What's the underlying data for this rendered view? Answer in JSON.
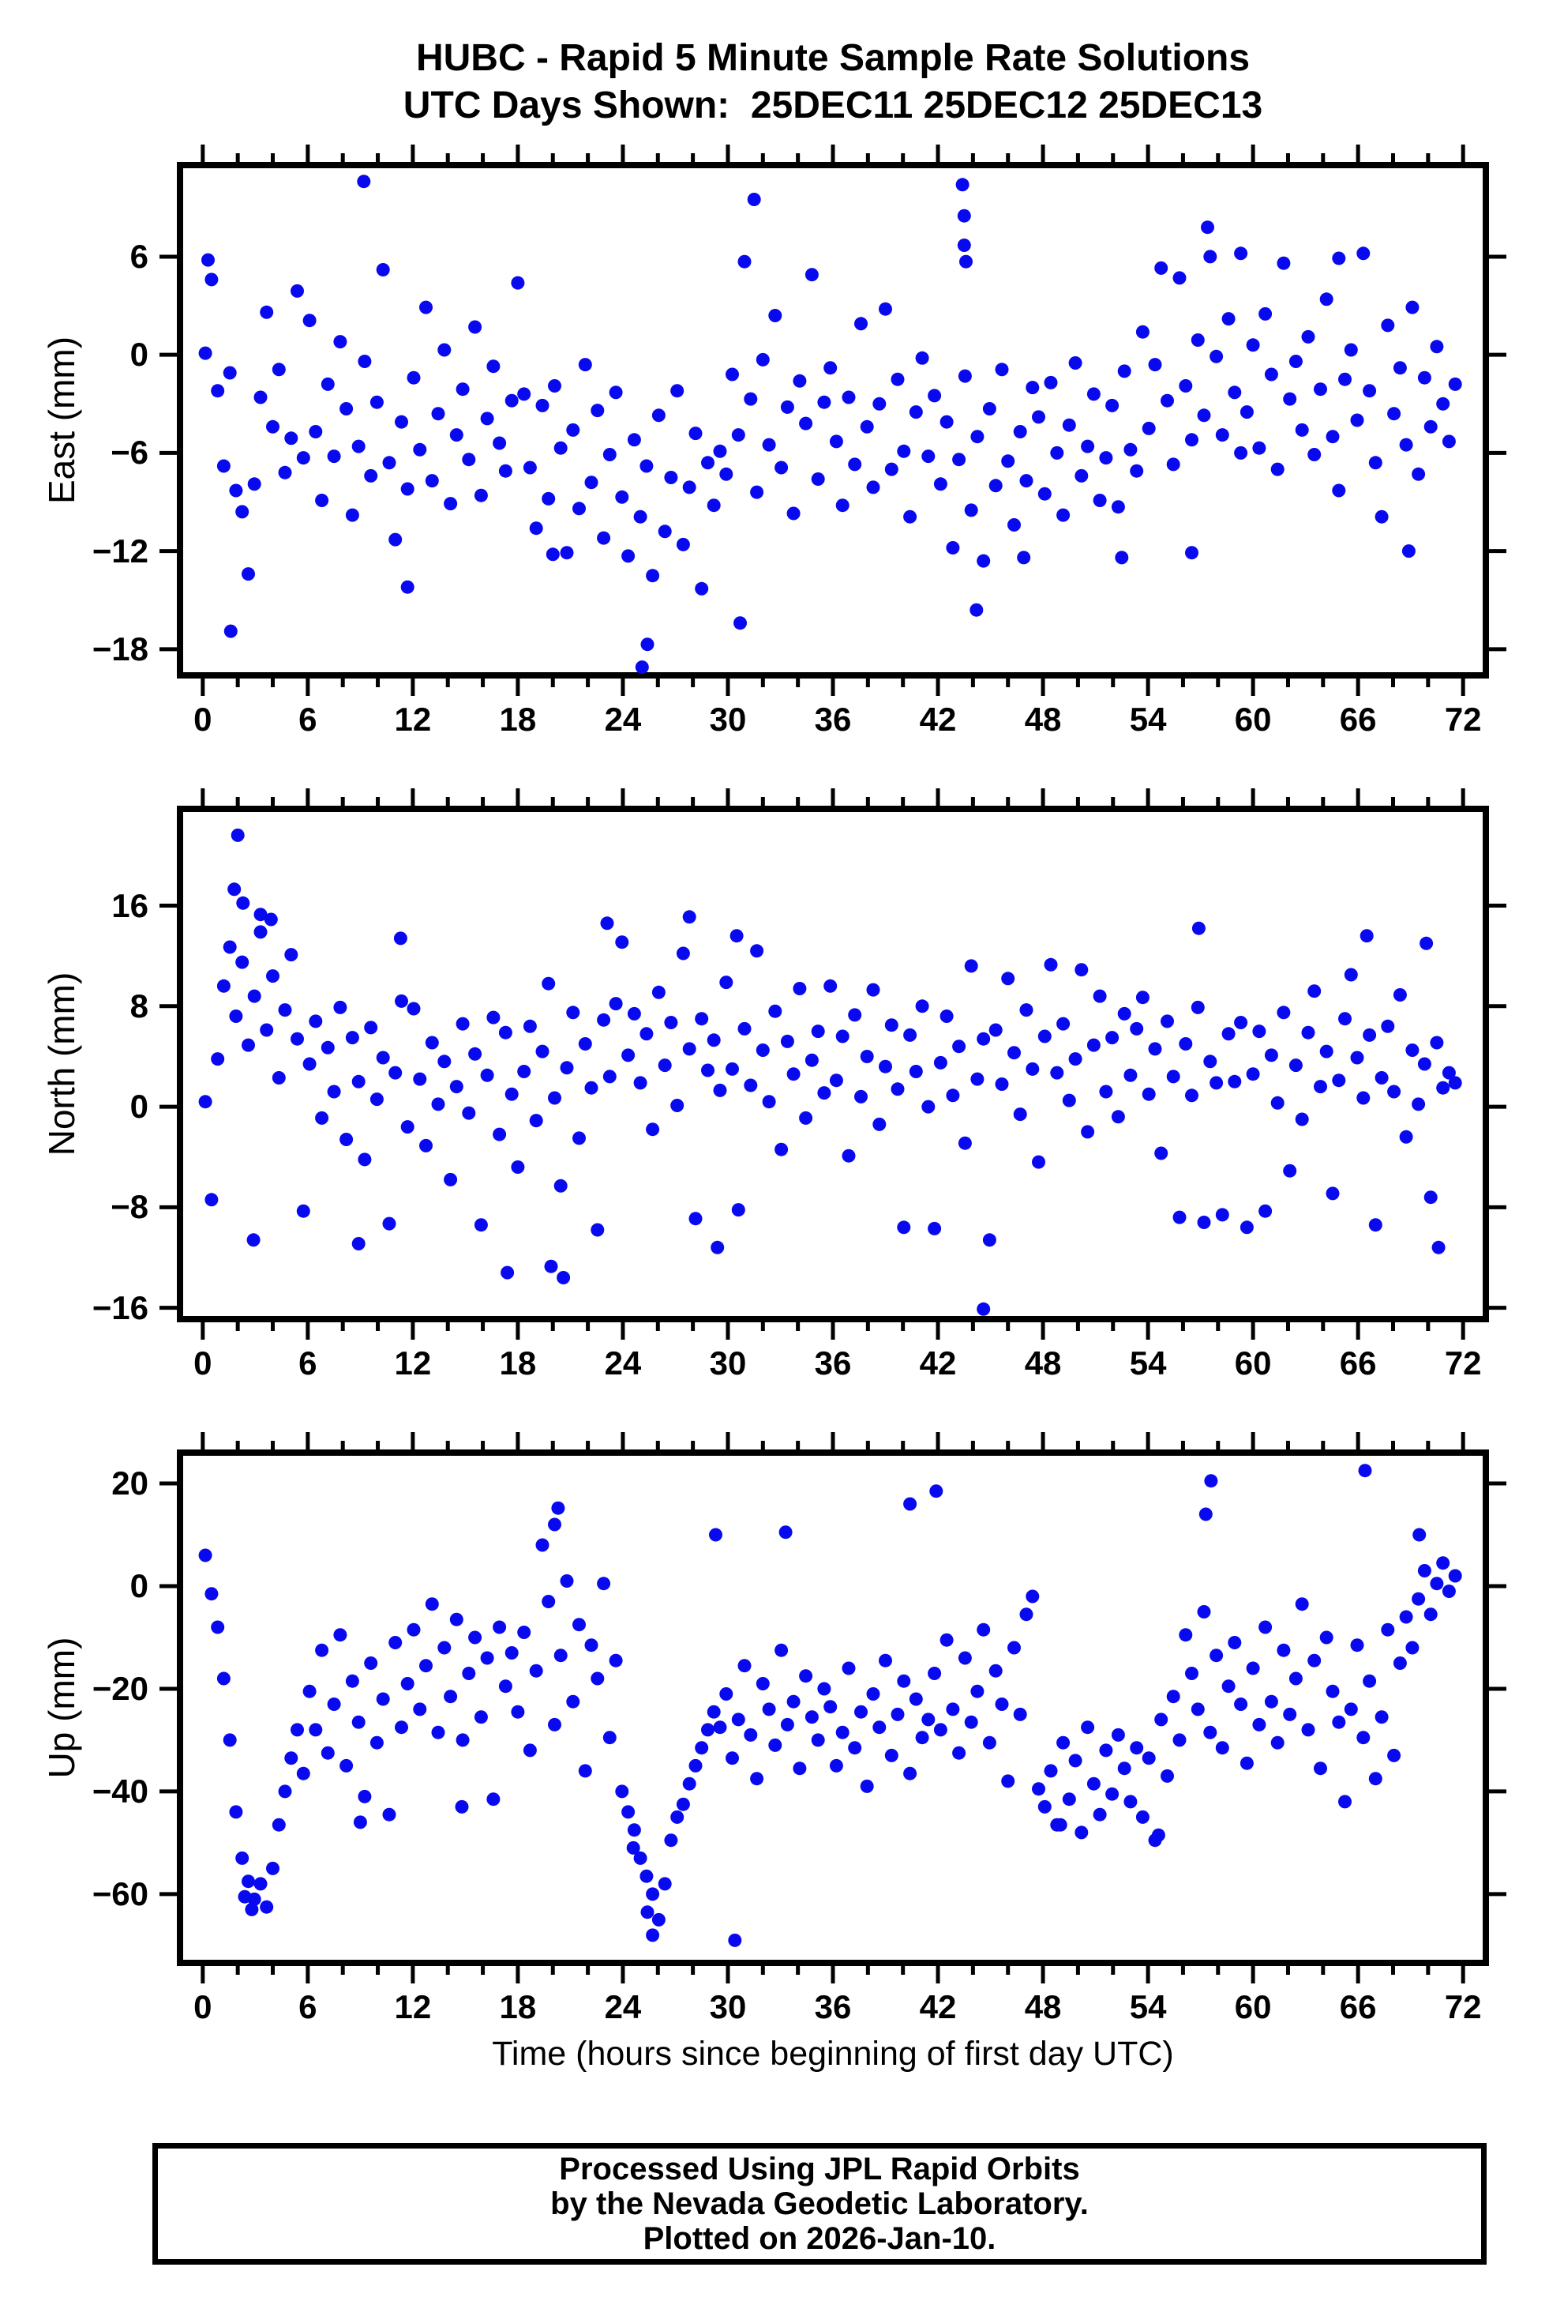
{
  "title": {
    "line1": "HUBC - Rapid 5 Minute Sample Rate Solutions",
    "line2": "UTC Days Shown:  25DEC11 25DEC12 25DEC13"
  },
  "footer": {
    "line1": "Processed Using JPL Rapid Orbits",
    "line2": "by the Nevada Geodetic Laboratory.",
    "line3": "Plotted on 2026-Jan-10."
  },
  "chart_data": {
    "type": "scatter",
    "station": "HUBC",
    "x_axis": {
      "label": "Time (hours since beginning of first day UTC)",
      "min": -1.3,
      "max": 73.3,
      "major_ticks": [
        0,
        6,
        12,
        18,
        24,
        30,
        36,
        42,
        48,
        54,
        60,
        66,
        72
      ],
      "minor_tick_step": 2
    },
    "marker": {
      "shape": "circle",
      "color": "#0909F0",
      "radius_px": 8.5
    },
    "grid": false,
    "legend": false,
    "panels": [
      {
        "name": "east",
        "ylabel": "East (mm)",
        "y_ticks": [
          6,
          0,
          -6,
          -12,
          -18
        ],
        "ymin": -19.6,
        "ymax": 11.6,
        "points": {
          "x_start": 0.15,
          "x_step": 0.35,
          "y": [
            0.1,
            4.6,
            -2.2,
            -6.8,
            -1.1,
            -8.3,
            -9.6,
            -13.4,
            -7.9,
            -2.6,
            2.6,
            -4.4,
            -0.9,
            -7.2,
            -5.1,
            3.9,
            -6.3,
            2.1,
            -4.7,
            -8.9,
            -1.8,
            -6.2,
            0.8,
            -3.3,
            -9.8,
            -5.6,
            -0.4,
            -7.4,
            -2.9,
            5.2,
            -6.6,
            -11.3,
            -4.1,
            -8.2,
            -1.4,
            -5.8,
            2.9,
            -7.7,
            -3.6,
            0.3,
            -9.1,
            -4.9,
            -2.1,
            -6.4,
            1.7,
            -8.6,
            -3.9,
            -0.7,
            -5.4,
            -7.1,
            -2.8,
            4.4,
            -2.4,
            -6.9,
            -10.6,
            -3.1,
            -8.8,
            -1.9,
            -5.7,
            -12.1,
            -4.6,
            -9.4,
            -0.6,
            -7.8,
            -3.4,
            -11.2,
            -6.1,
            -2.3,
            -8.7,
            -12.3,
            -5.2,
            -9.9,
            -6.8,
            -13.5,
            -3.7,
            -10.8,
            -7.5,
            -2.2,
            -11.6,
            -8.1,
            -4.8,
            -14.3,
            -6.6,
            -9.2,
            -5.9,
            -7.3,
            -1.2,
            -4.9,
            5.7,
            -2.7,
            -8.4,
            -0.3,
            -5.5,
            2.4,
            -6.9,
            -3.2,
            -9.7,
            -1.6,
            -4.2,
            4.9,
            -7.6,
            -2.9,
            -0.8,
            -5.3,
            -9.2,
            -2.6,
            -6.7,
            1.9,
            -4.4,
            -8.1,
            -3.0,
            2.8,
            -7.0,
            -1.5,
            -5.9,
            -9.9,
            -3.5,
            -0.2,
            -6.2,
            -2.5,
            -7.9,
            -4.1,
            -11.8,
            -6.4,
            -1.3,
            -9.5,
            -5.0,
            -12.6,
            -3.3,
            -8.0,
            -0.9,
            -6.5,
            -10.4,
            -4.7,
            -7.7,
            -2.0,
            -3.8,
            -8.5,
            -1.7,
            -6.0,
            -9.8,
            -4.3,
            -0.5,
            -7.4,
            -5.6,
            -2.4,
            -8.9,
            -6.3,
            -3.1,
            -9.3,
            -1.0,
            -5.8,
            -7.1,
            1.4,
            -4.5,
            -0.6,
            5.3,
            -2.8,
            -6.7,
            4.7,
            -1.9,
            -5.2,
            0.9,
            -3.7,
            6.0,
            -0.1,
            -4.9,
            2.2,
            -2.3,
            -6.0,
            -3.5,
            0.6,
            -5.7,
            2.5,
            -1.2,
            -7.0,
            5.6,
            -2.7,
            -0.4,
            -4.6,
            1.1,
            -6.1,
            -2.1,
            3.4,
            -5.0,
            -8.3,
            -1.5,
            0.3,
            -4.0,
            6.2,
            -2.2,
            -6.6,
            -9.9,
            1.8,
            -3.6,
            -0.8,
            -5.5,
            2.9,
            -7.3,
            -1.4,
            -4.4,
            0.5,
            -3.0,
            -5.3,
            -1.8
          ]
        },
        "outliers": [
          [
            0.3,
            5.8
          ],
          [
            1.6,
            -16.9
          ],
          [
            9.2,
            10.6
          ],
          [
            11.7,
            -14.2
          ],
          [
            20.0,
            -12.2
          ],
          [
            25.1,
            -19.1
          ],
          [
            25.4,
            -17.7
          ],
          [
            30.7,
            -16.4
          ],
          [
            31.5,
            9.5
          ],
          [
            43.4,
            10.4
          ],
          [
            43.5,
            8.5
          ],
          [
            43.5,
            6.7
          ],
          [
            43.6,
            5.7
          ],
          [
            44.2,
            -15.6
          ],
          [
            46.9,
            -12.4
          ],
          [
            52.5,
            -12.4
          ],
          [
            56.5,
            -12.1
          ],
          [
            57.4,
            7.8
          ],
          [
            59.3,
            6.2
          ],
          [
            64.9,
            5.9
          ],
          [
            68.9,
            -12.0
          ]
        ]
      },
      {
        "name": "north",
        "ylabel": "North (mm)",
        "y_ticks": [
          16,
          8,
          0,
          -8,
          -16
        ],
        "ymin": -16.9,
        "ymax": 23.7,
        "points": {
          "x_start": 0.15,
          "x_step": 0.35,
          "y": [
            0.4,
            -7.4,
            3.8,
            9.6,
            12.7,
            7.2,
            11.5,
            4.9,
            8.8,
            13.9,
            6.1,
            10.4,
            2.3,
            7.7,
            12.1,
            5.4,
            -8.3,
            3.4,
            6.8,
            -0.9,
            4.7,
            1.2,
            7.9,
            -2.6,
            5.5,
            2.0,
            -4.2,
            6.3,
            0.6,
            3.9,
            -9.3,
            2.7,
            8.4,
            -1.6,
            7.8,
            2.2,
            -3.1,
            5.1,
            0.2,
            3.6,
            -5.8,
            1.6,
            6.6,
            -0.5,
            4.2,
            -9.4,
            2.5,
            7.1,
            -2.2,
            5.9,
            1.0,
            -4.8,
            2.8,
            6.4,
            -1.1,
            4.4,
            9.8,
            0.7,
            -6.3,
            3.1,
            7.5,
            -2.5,
            5.0,
            1.5,
            -9.8,
            6.9,
            2.4,
            8.2,
            13.1,
            4.1,
            7.4,
            1.9,
            5.8,
            -1.8,
            9.1,
            3.3,
            6.7,
            0.1,
            12.2,
            4.6,
            -8.9,
            7.0,
            2.9,
            5.3,
            1.3,
            9.9,
            3.0,
            -8.2,
            6.2,
            1.7,
            12.4,
            4.5,
            0.4,
            7.6,
            -3.4,
            5.2,
            2.6,
            9.4,
            -0.9,
            3.7,
            6.0,
            1.1,
            9.6,
            2.1,
            5.6,
            -3.9,
            7.3,
            0.8,
            4.0,
            9.3,
            -1.4,
            3.2,
            6.5,
            1.4,
            -9.6,
            5.7,
            2.8,
            8.0,
            0.0,
            -9.7,
            3.5,
            7.2,
            0.9,
            4.8,
            -2.9,
            11.2,
            2.2,
            5.4,
            -10.6,
            6.1,
            1.8,
            10.2,
            4.3,
            -0.6,
            7.7,
            3.0,
            -4.4,
            5.6,
            11.3,
            2.7,
            6.6,
            0.5,
            3.8,
            10.9,
            -2.0,
            4.9,
            8.8,
            1.2,
            5.5,
            -0.8,
            7.4,
            2.5,
            6.2,
            8.7,
            1.0,
            4.6,
            -3.7,
            6.8,
            2.4,
            -8.8,
            5.0,
            0.9,
            7.9,
            -9.2,
            3.6,
            1.9,
            -8.6,
            5.8,
            2.0,
            6.7,
            -9.6,
            2.6,
            6.0,
            -8.3,
            4.1,
            0.3,
            7.5,
            -5.1,
            3.3,
            -1.0,
            5.9,
            9.2,
            1.6,
            4.4,
            -6.9,
            2.1,
            7.0,
            10.5,
            3.9,
            0.7,
            5.7,
            -9.4,
            2.3,
            6.4,
            1.2,
            8.9,
            -2.4,
            4.5,
            0.2,
            3.4,
            -7.2,
            5.1,
            1.5,
            2.7,
            1.9
          ]
        },
        "outliers": [
          [
            1.8,
            17.3
          ],
          [
            2.0,
            21.6
          ],
          [
            2.3,
            16.2
          ],
          [
            2.9,
            -10.6
          ],
          [
            3.3,
            15.3
          ],
          [
            3.9,
            14.9
          ],
          [
            8.9,
            -10.9
          ],
          [
            11.3,
            13.4
          ],
          [
            17.4,
            -13.2
          ],
          [
            19.9,
            -12.7
          ],
          [
            20.6,
            -13.6
          ],
          [
            23.1,
            14.6
          ],
          [
            27.8,
            15.1
          ],
          [
            29.4,
            -11.2
          ],
          [
            30.5,
            13.6
          ],
          [
            44.6,
            -16.1
          ],
          [
            56.9,
            14.2
          ],
          [
            66.5,
            13.6
          ],
          [
            69.9,
            13.0
          ],
          [
            70.6,
            -11.2
          ]
        ]
      },
      {
        "name": "up",
        "ylabel": "Up (mm)",
        "y_ticks": [
          20,
          0,
          -20,
          -40,
          -60
        ],
        "ymin": -73.4,
        "ymax": 26.0,
        "points": {
          "x_start": 0.15,
          "x_step": 0.35,
          "y": [
            6.0,
            -1.5,
            -8.0,
            -18.0,
            -30.0,
            -44.0,
            -53.0,
            -57.5,
            -61.0,
            -58.0,
            -62.5,
            -55.0,
            -46.5,
            -40.0,
            -33.5,
            -28.0,
            -36.5,
            -20.5,
            -28.0,
            -12.5,
            -32.5,
            -23.0,
            -9.5,
            -35.0,
            -18.5,
            -26.5,
            -41.0,
            -15.0,
            -30.5,
            -22.0,
            -44.5,
            -11.0,
            -27.5,
            -19.0,
            -8.5,
            -24.0,
            -15.5,
            -3.5,
            -28.5,
            -12.0,
            -21.5,
            -6.5,
            -30.0,
            -17.0,
            -10.0,
            -25.5,
            -14.0,
            -41.5,
            -8.0,
            -19.5,
            -13.0,
            -24.5,
            -9.0,
            -32.0,
            -16.5,
            8.0,
            -3.0,
            -27.0,
            -13.5,
            1.0,
            -22.5,
            -7.5,
            -36.0,
            -11.5,
            -18.0,
            0.5,
            -29.5,
            -14.5,
            -40.0,
            -44.0,
            -47.5,
            -53.0,
            -56.5,
            -60.0,
            -65.0,
            -58.0,
            -49.5,
            -45.0,
            -42.5,
            -38.5,
            -35.0,
            -31.5,
            -28.0,
            -24.5,
            -27.5,
            -21.0,
            -33.5,
            -26.0,
            -15.5,
            -29.0,
            -37.5,
            -19.0,
            -24.0,
            -31.0,
            -12.5,
            -27.0,
            -22.5,
            -35.5,
            -17.5,
            -25.5,
            -30.0,
            -20.0,
            -23.5,
            -35.0,
            -28.5,
            -16.0,
            -31.5,
            -24.5,
            -39.0,
            -21.0,
            -27.5,
            -14.5,
            -33.0,
            -25.0,
            -18.5,
            -36.5,
            -22.0,
            -29.5,
            -26.0,
            -17.0,
            -28.0,
            -10.5,
            -24.0,
            -32.5,
            -14.0,
            -26.5,
            -20.5,
            -8.5,
            -30.5,
            -16.5,
            -23.0,
            -38.0,
            -12.0,
            -25.0,
            -5.5,
            -2.0,
            -39.5,
            -43.0,
            -36.0,
            -46.5,
            -30.5,
            -41.5,
            -34.0,
            -48.0,
            -27.5,
            -38.5,
            -44.5,
            -32.0,
            -40.5,
            -29.0,
            -35.5,
            -42.0,
            -31.5,
            -45.0,
            -33.5,
            -49.5,
            -26.0,
            -37.0,
            -21.5,
            -30.0,
            -9.5,
            -17.0,
            -24.0,
            -5.0,
            -28.5,
            -13.5,
            -31.5,
            -19.5,
            -11.0,
            -23.0,
            -34.5,
            -16.0,
            -27.0,
            -8.0,
            -22.5,
            -30.5,
            -12.5,
            -25.0,
            -18.0,
            -3.5,
            -28.0,
            -14.5,
            -35.5,
            -10.0,
            -20.5,
            -26.5,
            -42.0,
            -24.0,
            -11.5,
            -29.5,
            -18.5,
            -37.5,
            -25.5,
            -8.5,
            -33.0,
            -15.0,
            -6.0,
            -12.0,
            -2.5,
            3.0,
            -5.5,
            0.5,
            4.5,
            -1.0,
            2.0
          ]
        },
        "outliers": [
          [
            2.4,
            -60.5
          ],
          [
            2.8,
            -63.0
          ],
          [
            9.0,
            -46.0
          ],
          [
            14.8,
            -43.0
          ],
          [
            20.1,
            12.0
          ],
          [
            20.3,
            15.2
          ],
          [
            24.6,
            -51.0
          ],
          [
            25.4,
            -63.5
          ],
          [
            25.7,
            -68.0
          ],
          [
            29.3,
            10.0
          ],
          [
            30.4,
            -69.0
          ],
          [
            33.3,
            10.5
          ],
          [
            40.4,
            16.0
          ],
          [
            41.9,
            18.5
          ],
          [
            49.0,
            -46.5
          ],
          [
            54.6,
            -48.5
          ],
          [
            57.3,
            14.0
          ],
          [
            57.6,
            20.5
          ],
          [
            66.4,
            22.5
          ],
          [
            69.5,
            10.0
          ]
        ]
      }
    ]
  }
}
